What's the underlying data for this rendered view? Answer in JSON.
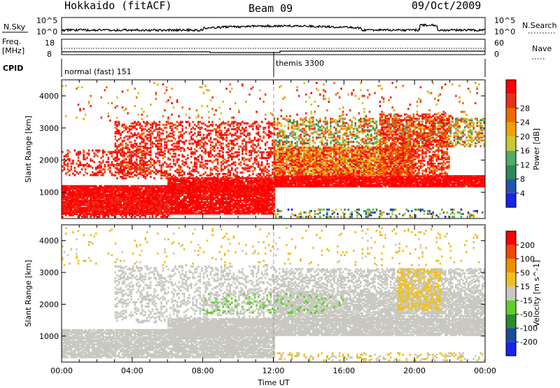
{
  "header": {
    "station": "Hokkaido (fitACF)",
    "beam": "Beam 09",
    "date": "09/Oct/2009"
  },
  "summary": {
    "nsky_label": "N.Sky",
    "nsearch_label": "N.Search",
    "freq_label_1": "Freq.",
    "freq_label_2": "[MHz]",
    "nave_label": "Nave",
    "cpid_label": "CPID",
    "nsky_ticks": [
      "10^5",
      "10^0"
    ],
    "nsearch_ticks": [
      "10^5",
      "10^0"
    ],
    "freq_ticks": [
      "18",
      "8"
    ],
    "nave_ticks": [
      "60",
      "0"
    ],
    "cpid_entries": [
      "normal (fast) 151",
      "themis 3300"
    ]
  },
  "colors": {
    "power": [
      "#1a22ee",
      "#2255aa",
      "#2a8a55",
      "#55aa66",
      "#c8c832",
      "#f0a000",
      "#f06a00",
      "#e83018",
      "#ff0000"
    ],
    "velocity": [
      "#1a22ee",
      "#1a4d99",
      "#2e8a2e",
      "#5ecf28",
      "#c8c8c0",
      "#f0c020",
      "#f09000",
      "#f04800",
      "#ff0000"
    ]
  },
  "chart_data": [
    {
      "type": "heatmap",
      "name": "power",
      "xlabel": "",
      "ylabel": "Slant Range [km]",
      "xlim": [
        0,
        24
      ],
      "ylim": [
        180,
        4500
      ],
      "y_ticks": [
        "1000",
        "2000",
        "3000",
        "4000"
      ],
      "colorbar_label": "Power [dB]",
      "colorbar_ticks": [
        "4",
        "8",
        "12",
        "16",
        "20",
        "24",
        "28"
      ],
      "colorbar_range": [
        0,
        30
      ],
      "scatter_regions": [
        {
          "t": [
            0,
            12
          ],
          "r": [
            300,
            1200
          ],
          "v": [
            26,
            30
          ],
          "density": 0.9
        },
        {
          "t": [
            0,
            6
          ],
          "r": [
            200,
            900
          ],
          "v": [
            24,
            30
          ],
          "density": 0.55
        },
        {
          "t": [
            6,
            12
          ],
          "r": [
            1000,
            1450
          ],
          "v": [
            26,
            30
          ],
          "density": 0.9
        },
        {
          "t": [
            12,
            24
          ],
          "r": [
            1150,
            1500
          ],
          "v": [
            26,
            30
          ],
          "density": 0.95
        },
        {
          "t": [
            12,
            20
          ],
          "r": [
            1500,
            2400
          ],
          "v": [
            14,
            30
          ],
          "density": 0.85
        },
        {
          "t": [
            12,
            24
          ],
          "r": [
            2400,
            3300
          ],
          "v": [
            8,
            26
          ],
          "density": 0.45
        },
        {
          "t": [
            3,
            12
          ],
          "r": [
            1400,
            3200
          ],
          "v": [
            22,
            30
          ],
          "density": 0.35
        },
        {
          "t": [
            0,
            5
          ],
          "r": [
            1500,
            2300
          ],
          "v": [
            22,
            30
          ],
          "density": 0.3
        },
        {
          "t": [
            18,
            22
          ],
          "r": [
            1500,
            3400
          ],
          "v": [
            20,
            30
          ],
          "density": 0.5
        },
        {
          "t": [
            12,
            24
          ],
          "r": [
            200,
            450
          ],
          "v": [
            2,
            20
          ],
          "density": 0.25
        },
        {
          "t": [
            0,
            24
          ],
          "r": [
            3200,
            4400
          ],
          "v": [
            14,
            28
          ],
          "density": 0.04
        }
      ]
    },
    {
      "type": "heatmap",
      "name": "velocity",
      "xlabel": "Time UT",
      "ylabel": "Slant Range [km]",
      "xlim": [
        0,
        24
      ],
      "ylim": [
        180,
        4500
      ],
      "x_ticks": [
        "00:00",
        "04:00",
        "08:00",
        "12:00",
        "16:00",
        "20:00",
        "00:00"
      ],
      "y_ticks": [
        "1000",
        "2000",
        "3000",
        "4000"
      ],
      "colorbar_label": "Velocity [m s^-1]",
      "colorbar_ticks": [
        "200",
        "100",
        "50",
        "15",
        "-15",
        "-50",
        "-100",
        "-200"
      ],
      "colorbar_range": [
        -250,
        250
      ],
      "scatter_regions": [
        {
          "t": [
            0,
            12
          ],
          "r": [
            300,
            1200
          ],
          "v": [
            -15,
            15
          ],
          "density": 0.85
        },
        {
          "t": [
            6,
            24
          ],
          "r": [
            1000,
            1500
          ],
          "v": [
            -15,
            15
          ],
          "density": 0.9
        },
        {
          "t": [
            12,
            24
          ],
          "r": [
            1500,
            2400
          ],
          "v": [
            -15,
            15
          ],
          "density": 0.75
        },
        {
          "t": [
            12,
            24
          ],
          "r": [
            2400,
            3100
          ],
          "v": [
            -15,
            15
          ],
          "density": 0.45
        },
        {
          "t": [
            3,
            12
          ],
          "r": [
            1400,
            3200
          ],
          "v": [
            -15,
            15
          ],
          "density": 0.3
        },
        {
          "t": [
            8,
            12
          ],
          "r": [
            1700,
            2300
          ],
          "v": [
            -40,
            -20
          ],
          "density": 0.2
        },
        {
          "t": [
            12,
            16
          ],
          "r": [
            1700,
            2300
          ],
          "v": [
            -40,
            -20
          ],
          "density": 0.15
        },
        {
          "t": [
            19,
            21.5
          ],
          "r": [
            1800,
            3100
          ],
          "v": [
            20,
            50
          ],
          "density": 0.55
        },
        {
          "t": [
            12,
            24
          ],
          "r": [
            200,
            450
          ],
          "v": [
            20,
            40
          ],
          "density": 0.2
        },
        {
          "t": [
            0,
            24
          ],
          "r": [
            3200,
            4400
          ],
          "v": [
            20,
            60
          ],
          "density": 0.04
        }
      ]
    }
  ]
}
